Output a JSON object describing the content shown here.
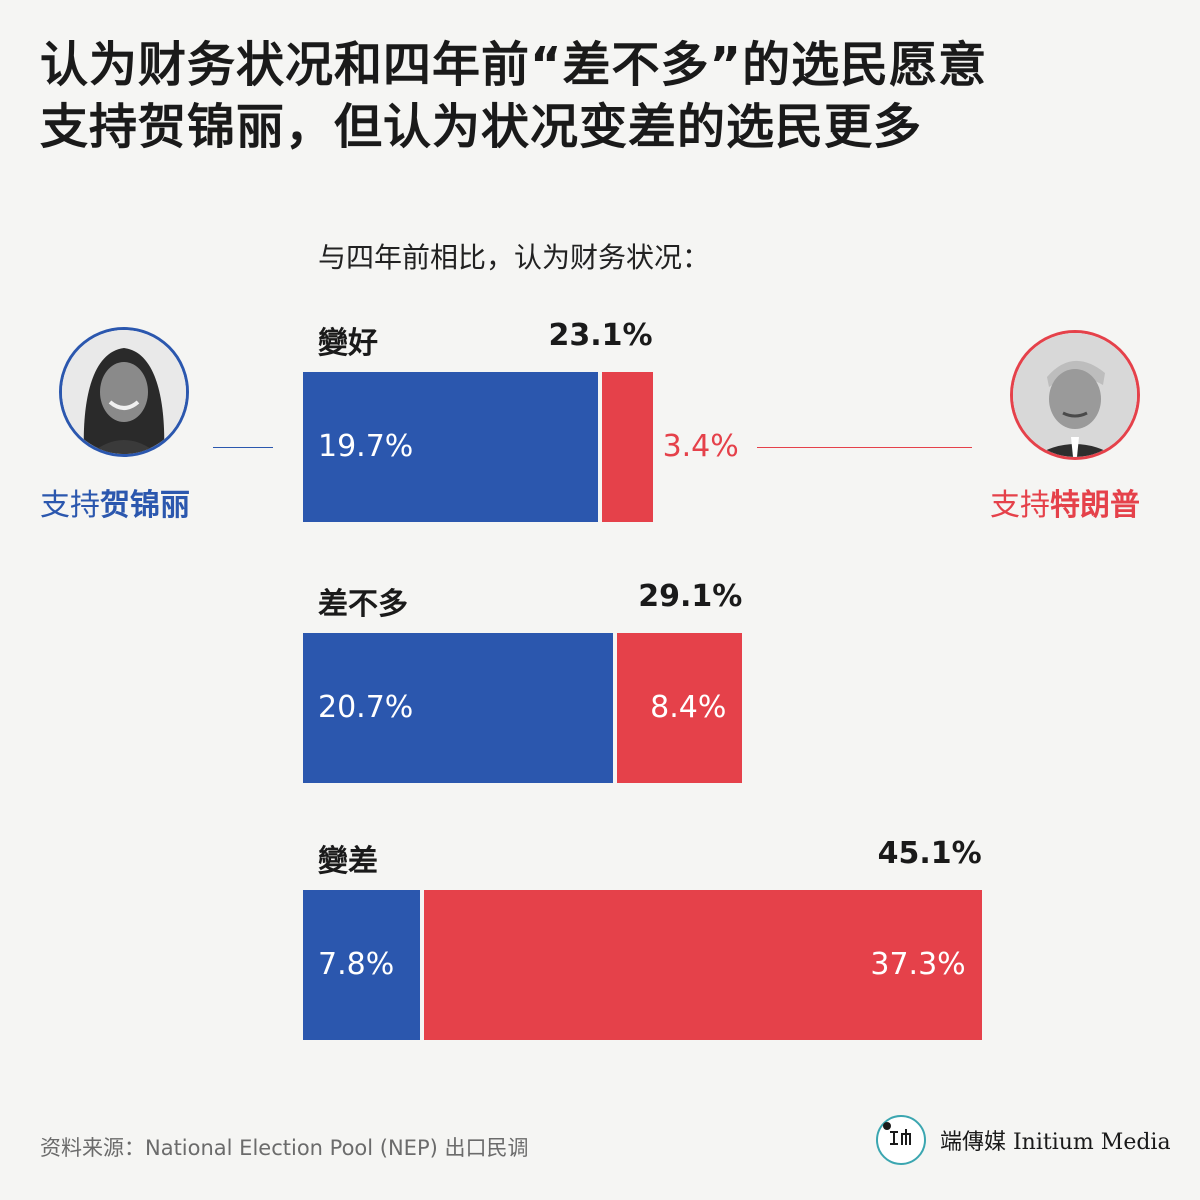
{
  "title": {
    "line1": "认为财务状况和四年前“差不多”的选民愿意",
    "line2": "支持贺锦丽，但认为状况变差的选民更多"
  },
  "subtitle": "与四年前相比，认为财务状况：",
  "legend": {
    "harris_prefix": "支持",
    "harris_name": "贺锦丽",
    "trump_prefix": "支持",
    "trump_name": "特朗普"
  },
  "colors": {
    "harris": "#2b57ae",
    "trump": "#e5414a",
    "background": "#f5f5f3"
  },
  "icons": {
    "harris_avatar": "harris-portrait-icon",
    "trump_avatar": "trump-portrait-icon",
    "logo": "initium-logo-icon"
  },
  "chart_data": {
    "type": "bar",
    "orientation": "horizontal-stacked",
    "categories": [
      "變好",
      "差不多",
      "變差"
    ],
    "series": [
      {
        "name": "支持贺锦丽",
        "values": [
          19.7,
          20.7,
          7.8
        ],
        "labels": [
          "19.7%",
          "20.7%",
          "7.8%"
        ]
      },
      {
        "name": "支持特朗普",
        "values": [
          3.4,
          8.4,
          37.3
        ],
        "labels": [
          "3.4%",
          "8.4%",
          "37.3%"
        ]
      }
    ],
    "totals": [
      23.1,
      29.1,
      45.1
    ],
    "total_labels": [
      "23.1%",
      "29.1%",
      "45.1%"
    ],
    "unit": "%"
  },
  "source": "资料来源：National Election Pool (NEP) 出口民调",
  "brand": "端傳媒 Initium Media"
}
